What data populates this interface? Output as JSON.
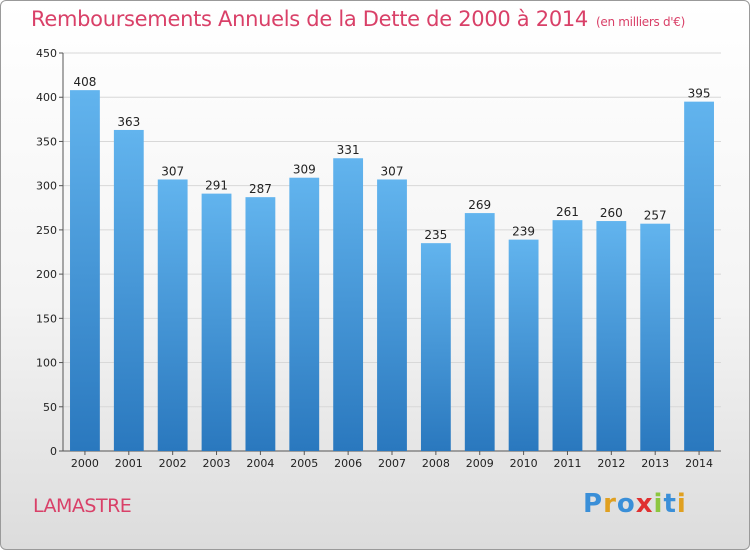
{
  "header": {
    "title": "Remboursements Annuels de la Dette de 2000 à 2014",
    "unit": "(en milliers d'€)"
  },
  "footer": {
    "city": "LAMASTRE",
    "logo_text": "Proxiti"
  },
  "colors": {
    "title": "#d94068",
    "bar_top": "#62b4ee",
    "bar_bottom": "#2a78be",
    "grid": "#d8d8d8"
  },
  "chart_data": {
    "type": "bar",
    "title": "Remboursements Annuels de la Dette de 2000 à 2014",
    "xlabel": "",
    "ylabel": "",
    "ylim": [
      0,
      450
    ],
    "yticks": [
      0,
      50,
      100,
      150,
      200,
      250,
      300,
      350,
      400,
      450
    ],
    "grid": true,
    "categories": [
      "2000",
      "2001",
      "2002",
      "2003",
      "2004",
      "2005",
      "2006",
      "2007",
      "2008",
      "2009",
      "2010",
      "2011",
      "2012",
      "2013",
      "2014"
    ],
    "values": [
      408,
      363,
      307,
      291,
      287,
      309,
      331,
      307,
      235,
      269,
      239,
      261,
      260,
      257,
      395
    ]
  }
}
